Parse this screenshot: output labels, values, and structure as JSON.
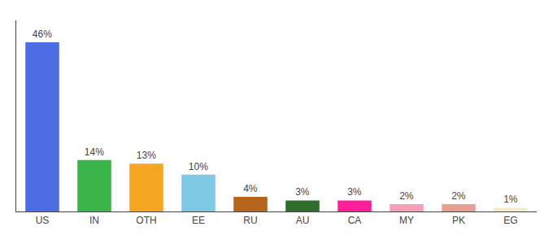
{
  "chart_data": {
    "type": "bar",
    "categories": [
      "US",
      "IN",
      "OTH",
      "EE",
      "RU",
      "AU",
      "CA",
      "MY",
      "PK",
      "EG"
    ],
    "values": [
      46,
      14,
      13,
      10,
      4,
      3,
      3,
      2,
      2,
      1
    ],
    "value_labels": [
      "46%",
      "14%",
      "13%",
      "10%",
      "4%",
      "3%",
      "3%",
      "2%",
      "2%",
      "1%"
    ],
    "colors": [
      "#4d6ee3",
      "#3ab54a",
      "#f5a623",
      "#7ec8e3",
      "#b5651d",
      "#2d6e2d",
      "#ff1e9a",
      "#f5a0b8",
      "#e8a090",
      "#f0edcc"
    ],
    "ylim": [
      0,
      52
    ],
    "data_labels": true,
    "tick_labels": "x",
    "grid": false
  }
}
